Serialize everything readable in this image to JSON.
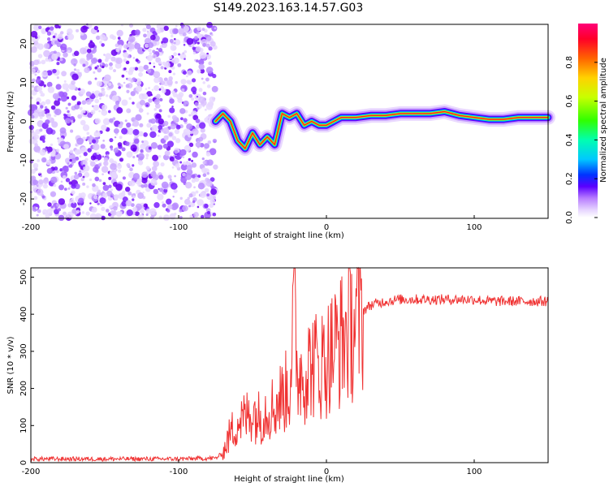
{
  "title": "S149.2023.163.14.57.G03",
  "chart_data": [
    {
      "type": "heatmap",
      "xlabel": "Height of straight line (km)",
      "ylabel": "Frequency (Hz)",
      "xlim": [
        -200,
        150
      ],
      "ylim": [
        -25,
        25
      ],
      "xticks": [
        -200,
        -100,
        0,
        100
      ],
      "yticks": [
        -20,
        -10,
        0,
        10,
        20
      ],
      "noise_region_x": [
        -200,
        -75
      ],
      "signal_track": {
        "x": [
          -75,
          -70,
          -65,
          -60,
          -55,
          -50,
          -45,
          -40,
          -35,
          -30,
          -25,
          -20,
          -15,
          -10,
          -5,
          0,
          10,
          20,
          30,
          40,
          50,
          60,
          70,
          80,
          85,
          90,
          100,
          110,
          120,
          130,
          140,
          150
        ],
        "frequency_hz": [
          0,
          2,
          0,
          -5,
          -7,
          -3,
          -6,
          -4,
          -6,
          2,
          1,
          2,
          -1,
          0,
          -1,
          -1,
          1,
          1,
          1.5,
          1.5,
          2,
          2,
          2,
          2.5,
          2,
          1.5,
          1,
          0.5,
          0.5,
          1,
          1,
          1
        ]
      },
      "colorbar": {
        "label": "Normalized spectral amplitude",
        "range": [
          0,
          1
        ],
        "ticks": [
          0.0,
          0.2,
          0.4,
          0.6,
          0.8
        ]
      }
    },
    {
      "type": "line",
      "xlabel": "Height of straight line (km)",
      "ylabel": "SNR (10 * v/v)",
      "xlim": [
        -200,
        150
      ],
      "ylim": [
        0,
        525
      ],
      "xticks": [
        -200,
        -100,
        0,
        100
      ],
      "yticks": [
        0,
        100,
        200,
        300,
        400,
        500
      ],
      "color": "#f03232",
      "series": [
        {
          "x": [
            -200,
            -150,
            -100,
            -75,
            -70,
            -65,
            -60,
            -55,
            -50,
            -45,
            -40,
            -35,
            -30,
            -25,
            -22,
            -20,
            -15,
            -10,
            -5,
            0,
            5,
            10,
            15,
            20,
            25,
            30,
            40,
            50,
            60,
            80,
            90,
            100,
            110,
            120,
            130,
            140,
            150
          ],
          "values": [
            10,
            10,
            10,
            12,
            25,
            80,
            110,
            120,
            140,
            120,
            150,
            150,
            180,
            200,
            450,
            250,
            240,
            270,
            260,
            280,
            310,
            330,
            360,
            380,
            410,
            425,
            435,
            440,
            440,
            440,
            440,
            440,
            435,
            435,
            435,
            435,
            435
          ]
        }
      ]
    }
  ]
}
